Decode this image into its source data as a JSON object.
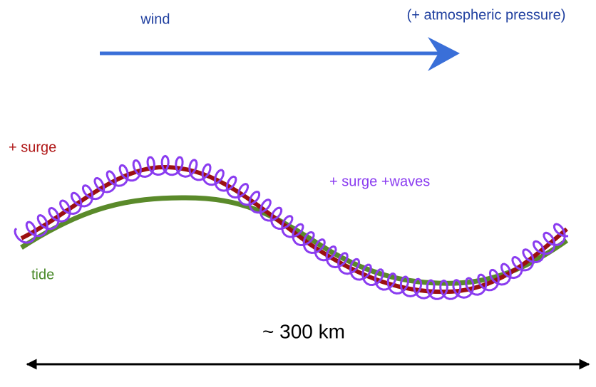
{
  "labels": {
    "wind": "wind",
    "pressure": "(+ atmospheric pressure)",
    "surge": "+ surge",
    "surge_waves": "+ surge +waves",
    "tide": "tide",
    "distance": "~ 300 km"
  }
}
